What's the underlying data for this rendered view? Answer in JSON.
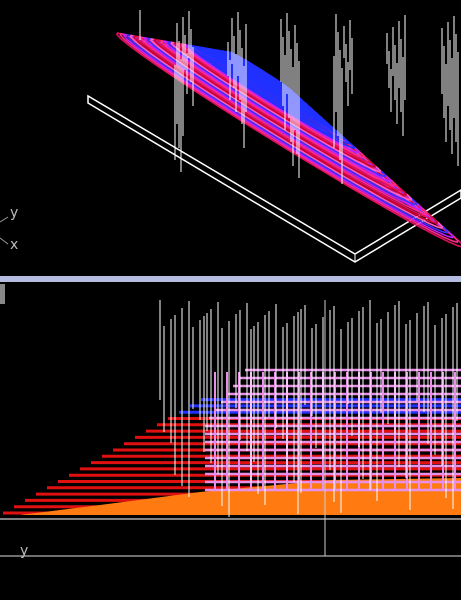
{
  "views": [
    {
      "axis_labels": [
        "y",
        "x"
      ]
    },
    {
      "axis_labels": [
        "y"
      ]
    }
  ]
}
